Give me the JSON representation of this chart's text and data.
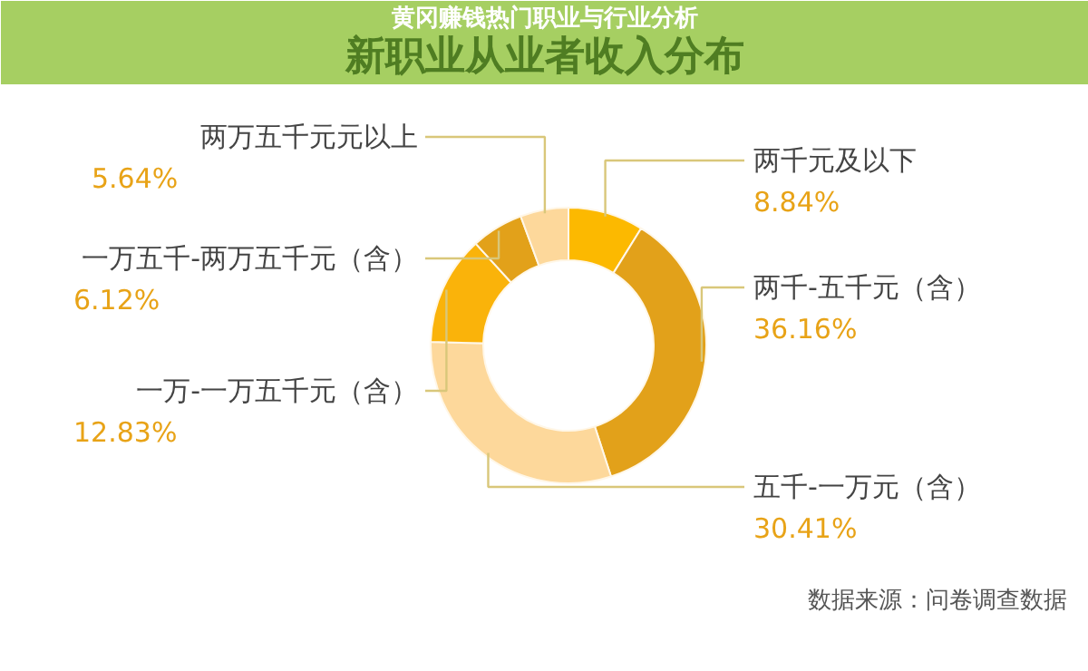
{
  "chart_data": {
    "type": "donut",
    "title": "黄冈赚钱热门职业与行业分析",
    "subtitle": "新职业从业者收入分布",
    "categories": [
      "两千元及以下",
      "两千-五千元（含）",
      "五千-一万元（含）",
      "一万-一万五千元（含）",
      "一万五千-两万五千元（含）",
      "两万五千元元以上"
    ],
    "values": [
      8.84,
      36.16,
      30.41,
      12.83,
      6.12,
      5.64
    ],
    "colors": [
      "#fcb900",
      "#e2a11a",
      "#fdd89b",
      "#fab30a",
      "#e2a11a",
      "#fdd89b"
    ],
    "value_labels": [
      "8.84%",
      "36.16%",
      "30.41%",
      "12.83%",
      "6.12%",
      "5.64%"
    ],
    "annotations": [
      "数据来源：问卷调查数据"
    ]
  }
}
